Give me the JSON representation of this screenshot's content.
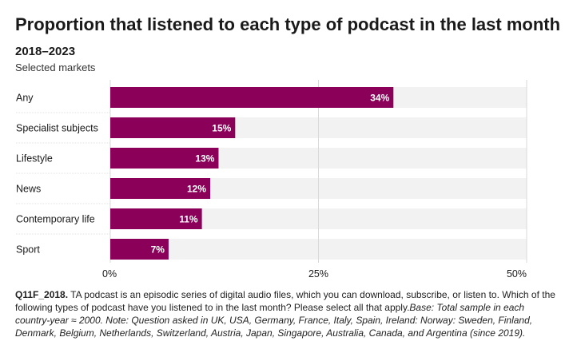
{
  "title": "Proportion that listened to each type of podcast in the last month",
  "subtitle": "2018–2023",
  "subsubtitle": "Selected markets",
  "colors": {
    "bar": "#8b0058",
    "track": "#f2f2f2",
    "label_text": "#ffffff",
    "gridline": "#d9d9d9"
  },
  "chart_data": {
    "type": "bar",
    "orientation": "horizontal",
    "categories": [
      "Any",
      "Specialist subjects",
      "Lifestyle",
      "News",
      "Contemporary life",
      "Sport"
    ],
    "values": [
      34,
      15,
      13,
      12,
      11,
      7
    ],
    "value_labels": [
      "34%",
      "15%",
      "13%",
      "12%",
      "11%",
      "7%"
    ],
    "xlim": [
      0,
      50
    ],
    "xticks": [
      0,
      25,
      50
    ],
    "xtick_labels": [
      "0%",
      "25%",
      "50%"
    ],
    "grid": true
  },
  "footnote": {
    "code": "Q11F_2018.",
    "question": " TA podcast is an episodic series of digital audio files, which you can download, subscribe, or listen to. Which of the following types of podcast have you listened to in the last month? Please select all that apply.",
    "base": "Base: Total sample in each country-year ≈ 2000. Note: Question asked in UK, USA, Germany, France, Italy, Spain, Ireland: Norway: Sweden, Finland, Denmark, Belgium, Netherlands, Switzerland, Austria, Japan, Singapore, Australia, Canada, and Argentina (since 2019)."
  }
}
